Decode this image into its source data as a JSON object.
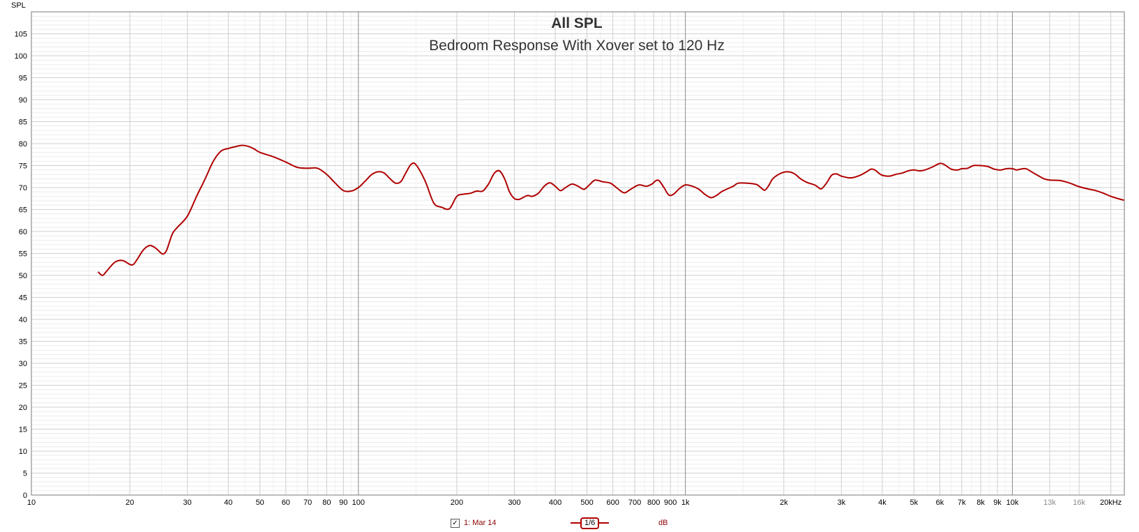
{
  "chart_data": {
    "type": "line",
    "title": "All SPL",
    "subtitle": "Bedroom Response With Xover set to 120 Hz",
    "ylabel": "SPL",
    "xscale": "log",
    "xlim": [
      10,
      22000
    ],
    "ylim": [
      0,
      110
    ],
    "grid": true,
    "y_ticks": [
      0,
      5,
      10,
      15,
      20,
      25,
      30,
      35,
      40,
      45,
      50,
      55,
      60,
      65,
      70,
      75,
      80,
      85,
      90,
      95,
      100,
      105
    ],
    "x_ticks": [
      {
        "value": 10,
        "label": "10"
      },
      {
        "value": 20,
        "label": "20"
      },
      {
        "value": 30,
        "label": "30"
      },
      {
        "value": 40,
        "label": "40"
      },
      {
        "value": 50,
        "label": "50"
      },
      {
        "value": 60,
        "label": "60"
      },
      {
        "value": 70,
        "label": "70"
      },
      {
        "value": 80,
        "label": "80"
      },
      {
        "value": 90,
        "label": "90"
      },
      {
        "value": 100,
        "label": "100"
      },
      {
        "value": 200,
        "label": "200"
      },
      {
        "value": 300,
        "label": "300"
      },
      {
        "value": 400,
        "label": "400"
      },
      {
        "value": 500,
        "label": "500"
      },
      {
        "value": 600,
        "label": "600"
      },
      {
        "value": 700,
        "label": "700"
      },
      {
        "value": 800,
        "label": "800"
      },
      {
        "value": 900,
        "label": "900"
      },
      {
        "value": 1000,
        "label": "1k"
      },
      {
        "value": 2000,
        "label": "2k"
      },
      {
        "value": 3000,
        "label": "3k"
      },
      {
        "value": 4000,
        "label": "4k"
      },
      {
        "value": 5000,
        "label": "5k"
      },
      {
        "value": 6000,
        "label": "6k"
      },
      {
        "value": 7000,
        "label": "7k"
      },
      {
        "value": 8000,
        "label": "8k"
      },
      {
        "value": 9000,
        "label": "9k"
      },
      {
        "value": 10000,
        "label": "10k"
      },
      {
        "value": 13000,
        "label": "13k",
        "faint": true
      },
      {
        "value": 16000,
        "label": "16k",
        "faint": true
      },
      {
        "value": 20000,
        "label": "20kHz"
      }
    ],
    "series": [
      {
        "name": "1: Mar 14",
        "color": "#b00000",
        "points": [
          [
            16,
            50.8
          ],
          [
            16.5,
            50
          ],
          [
            17,
            51
          ],
          [
            18,
            53
          ],
          [
            19,
            53.4
          ],
          [
            20,
            52.5
          ],
          [
            20.5,
            52.5
          ],
          [
            21,
            53.5
          ],
          [
            22,
            55.8
          ],
          [
            23,
            56.8
          ],
          [
            24,
            56.2
          ],
          [
            25,
            55
          ],
          [
            25.5,
            55
          ],
          [
            26,
            56
          ],
          [
            27,
            59.5
          ],
          [
            28,
            61
          ],
          [
            30,
            63.5
          ],
          [
            32,
            68
          ],
          [
            34,
            72
          ],
          [
            36,
            76
          ],
          [
            38,
            78.3
          ],
          [
            40,
            78.9
          ],
          [
            42,
            79.3
          ],
          [
            44,
            79.6
          ],
          [
            46,
            79.4
          ],
          [
            48,
            78.8
          ],
          [
            50,
            78
          ],
          [
            55,
            77
          ],
          [
            60,
            75.8
          ],
          [
            65,
            74.6
          ],
          [
            70,
            74.4
          ],
          [
            75,
            74.4
          ],
          [
            80,
            73
          ],
          [
            85,
            71
          ],
          [
            90,
            69.3
          ],
          [
            95,
            69.2
          ],
          [
            100,
            70
          ],
          [
            105,
            71.5
          ],
          [
            110,
            73
          ],
          [
            115,
            73.6
          ],
          [
            120,
            73.3
          ],
          [
            125,
            72
          ],
          [
            130,
            71
          ],
          [
            135,
            71.4
          ],
          [
            140,
            73.5
          ],
          [
            145,
            75.3
          ],
          [
            150,
            75.2
          ],
          [
            160,
            71.5
          ],
          [
            170,
            66.5
          ],
          [
            180,
            65.5
          ],
          [
            190,
            65.2
          ],
          [
            200,
            68
          ],
          [
            210,
            68.5
          ],
          [
            220,
            68.7
          ],
          [
            230,
            69.2
          ],
          [
            240,
            69.2
          ],
          [
            250,
            70.8
          ],
          [
            260,
            73.2
          ],
          [
            270,
            73.8
          ],
          [
            280,
            72
          ],
          [
            290,
            69
          ],
          [
            300,
            67.5
          ],
          [
            310,
            67.3
          ],
          [
            320,
            67.8
          ],
          [
            330,
            68.2
          ],
          [
            340,
            68
          ],
          [
            355,
            68.7
          ],
          [
            370,
            70.3
          ],
          [
            385,
            71.1
          ],
          [
            400,
            70.3
          ],
          [
            415,
            69.3
          ],
          [
            430,
            70
          ],
          [
            450,
            70.8
          ],
          [
            470,
            70.3
          ],
          [
            490,
            69.6
          ],
          [
            510,
            70.7
          ],
          [
            530,
            71.7
          ],
          [
            560,
            71.3
          ],
          [
            590,
            71
          ],
          [
            620,
            69.8
          ],
          [
            650,
            68.8
          ],
          [
            680,
            69.6
          ],
          [
            720,
            70.6
          ],
          [
            760,
            70.3
          ],
          [
            790,
            70.8
          ],
          [
            810,
            71.5
          ],
          [
            830,
            71.6
          ],
          [
            860,
            70
          ],
          [
            890,
            68.3
          ],
          [
            920,
            68.5
          ],
          [
            960,
            69.8
          ],
          [
            1000,
            70.6
          ],
          [
            1050,
            70.3
          ],
          [
            1100,
            69.6
          ],
          [
            1150,
            68.4
          ],
          [
            1200,
            67.7
          ],
          [
            1250,
            68.3
          ],
          [
            1300,
            69.2
          ],
          [
            1400,
            70.3
          ],
          [
            1450,
            71
          ],
          [
            1550,
            71
          ],
          [
            1650,
            70.7
          ],
          [
            1700,
            70
          ],
          [
            1750,
            69.4
          ],
          [
            1800,
            70.5
          ],
          [
            1850,
            72
          ],
          [
            1950,
            73.2
          ],
          [
            2050,
            73.6
          ],
          [
            2150,
            73.2
          ],
          [
            2250,
            72
          ],
          [
            2350,
            71.2
          ],
          [
            2500,
            70.5
          ],
          [
            2600,
            69.7
          ],
          [
            2700,
            71
          ],
          [
            2800,
            72.8
          ],
          [
            2900,
            73.1
          ],
          [
            3000,
            72.6
          ],
          [
            3200,
            72.2
          ],
          [
            3400,
            72.7
          ],
          [
            3600,
            73.7
          ],
          [
            3700,
            74.2
          ],
          [
            3800,
            74
          ],
          [
            3900,
            73.3
          ],
          [
            4000,
            72.8
          ],
          [
            4200,
            72.6
          ],
          [
            4400,
            73
          ],
          [
            4600,
            73.3
          ],
          [
            4800,
            73.8
          ],
          [
            5000,
            74
          ],
          [
            5200,
            73.8
          ],
          [
            5400,
            74
          ],
          [
            5700,
            74.7
          ],
          [
            6000,
            75.5
          ],
          [
            6200,
            75.2
          ],
          [
            6500,
            74.2
          ],
          [
            6800,
            74
          ],
          [
            7000,
            74.3
          ],
          [
            7300,
            74.4
          ],
          [
            7600,
            75
          ],
          [
            8000,
            75
          ],
          [
            8400,
            74.8
          ],
          [
            8800,
            74.2
          ],
          [
            9200,
            74
          ],
          [
            9600,
            74.3
          ],
          [
            10000,
            74.3
          ],
          [
            10300,
            74
          ],
          [
            10600,
            74.2
          ],
          [
            11000,
            74.3
          ],
          [
            11500,
            73.5
          ],
          [
            12000,
            72.7
          ],
          [
            12500,
            72
          ],
          [
            13000,
            71.7
          ],
          [
            14000,
            71.6
          ],
          [
            15000,
            71
          ],
          [
            16000,
            70.2
          ],
          [
            17000,
            69.7
          ],
          [
            18000,
            69.3
          ],
          [
            19000,
            68.7
          ],
          [
            20000,
            68
          ],
          [
            21000,
            67.5
          ],
          [
            22000,
            67.1
          ]
        ]
      }
    ]
  },
  "legend": {
    "checked": true,
    "check_glyph": "✓",
    "item_label": "1: Mar 14",
    "smoothing_label": "1/6",
    "unit_label": "dB"
  }
}
